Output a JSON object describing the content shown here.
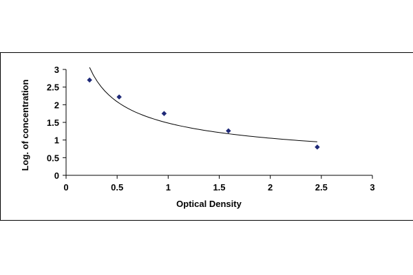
{
  "chart_data": {
    "type": "scatter",
    "title": "",
    "xlabel": "Optical Density",
    "ylabel": "Log. of concentration",
    "xlim": [
      0,
      3
    ],
    "ylim": [
      0,
      3
    ],
    "xticks": [
      0,
      0.5,
      1,
      1.5,
      2,
      2.5,
      3
    ],
    "yticks": [
      0,
      0.5,
      1,
      1.5,
      2,
      2.5,
      3
    ],
    "xtick_labels": [
      "0",
      "0.5",
      "1",
      "1.5",
      "2",
      "2.5",
      "3"
    ],
    "ytick_labels": [
      "0",
      "0.5",
      "1",
      "1.5",
      "2",
      "2.5",
      "3"
    ],
    "grid": false,
    "legend": "none",
    "marker": "diamond",
    "trendline": "power",
    "colors": {
      "marker": "#1f2a78",
      "line": "#000000",
      "axis": "#000000"
    },
    "series": [
      {
        "x": [
          0.23,
          0.52,
          0.96,
          1.59,
          2.46
        ],
        "y": [
          2.7,
          2.22,
          1.75,
          1.26,
          0.8
        ]
      }
    ]
  }
}
